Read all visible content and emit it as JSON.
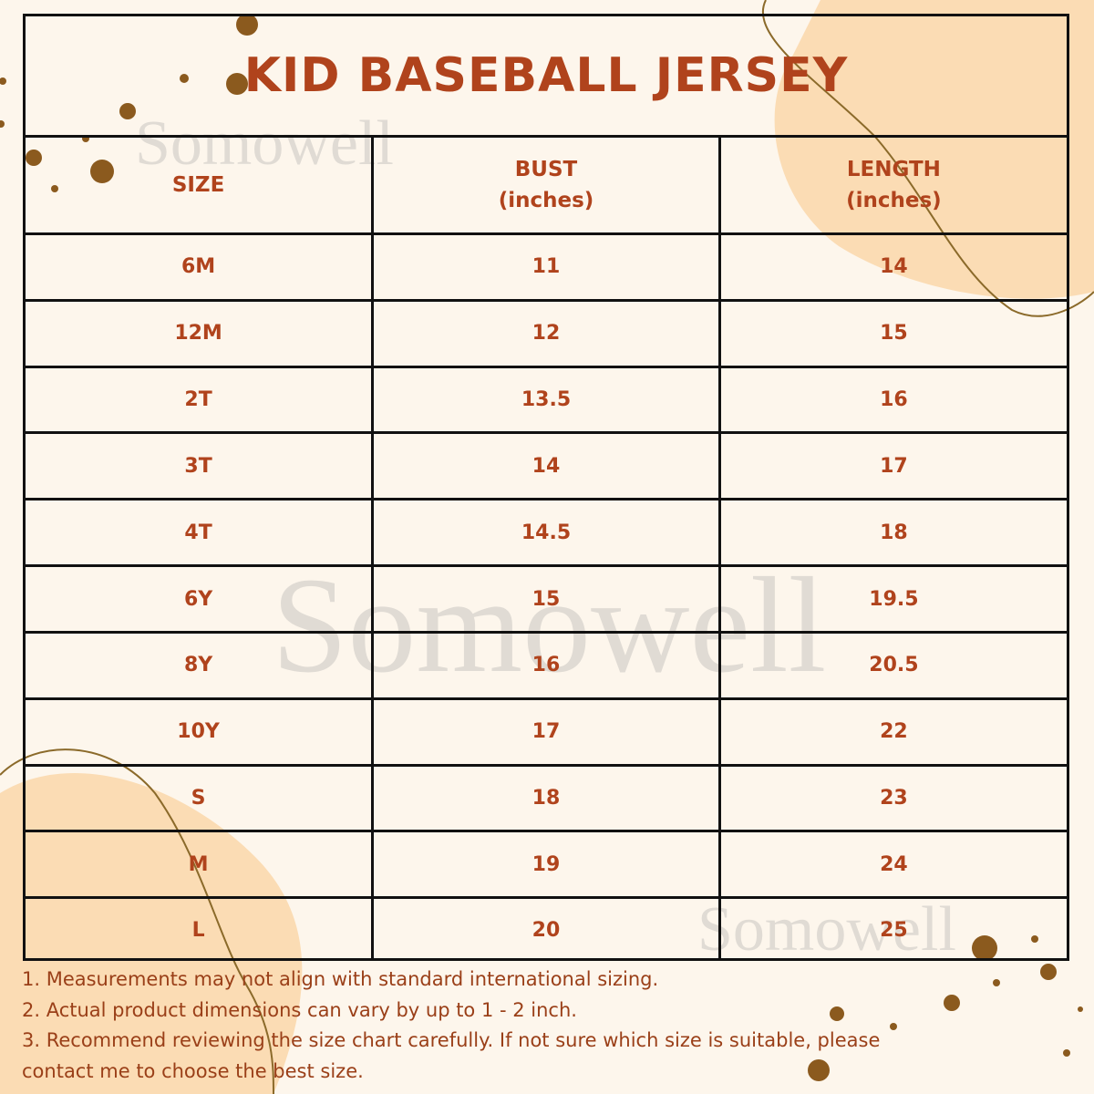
{
  "title": "KID BASEBALL JERSEY",
  "watermark": "Somowell",
  "colors": {
    "accent": "#b0431c",
    "dots": "#8b5a1e",
    "blob": "#fbdcb4",
    "background": "#fdf6ec"
  },
  "table": {
    "headers": [
      {
        "line1": "SIZE",
        "line2": ""
      },
      {
        "line1": "BUST",
        "line2": "(inches)"
      },
      {
        "line1": "LENGTH",
        "line2": "(inches)"
      }
    ],
    "rows": [
      [
        "6M",
        "11",
        "14"
      ],
      [
        "12M",
        "12",
        "15"
      ],
      [
        "2T",
        "13.5",
        "16"
      ],
      [
        "3T",
        "14",
        "17"
      ],
      [
        "4T",
        "14.5",
        "18"
      ],
      [
        "6Y",
        "15",
        "19.5"
      ],
      [
        "8Y",
        "16",
        "20.5"
      ],
      [
        "10Y",
        "17",
        "22"
      ],
      [
        "S",
        "18",
        "23"
      ],
      [
        "M",
        "19",
        "24"
      ],
      [
        "L",
        "20",
        "25"
      ]
    ]
  },
  "notes": [
    "1. Measurements may not align with standard international sizing.",
    "2. Actual product dimensions can vary by up to 1 - 2 inch.",
    "3. Recommend reviewing the size chart carefully. If not sure which size is suitable, please",
    "contact me to choose the best size."
  ]
}
